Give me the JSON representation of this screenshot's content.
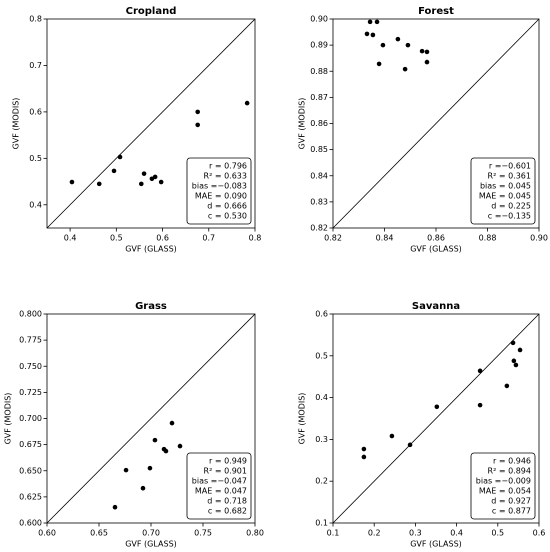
{
  "chart_data": [
    {
      "type": "scatter",
      "title": "Cropland",
      "xlabel": "GVF (GLASS)",
      "ylabel": "GVF (MODIS)",
      "color": "#000000",
      "x": [
        0.404,
        0.463,
        0.495,
        0.508,
        0.554,
        0.56,
        0.577,
        0.584,
        0.597,
        0.676,
        0.676,
        0.783
      ],
      "values": [
        0.449,
        0.445,
        0.473,
        0.503,
        0.445,
        0.467,
        0.456,
        0.46,
        0.449,
        0.6,
        0.572,
        0.619
      ],
      "xlim": [
        0.35,
        0.8
      ],
      "ylim": [
        0.35,
        0.8
      ],
      "xticks": [
        0.4,
        0.5,
        0.6,
        0.7,
        0.8
      ],
      "yticks": [
        0.4,
        0.5,
        0.6,
        0.7,
        0.8
      ],
      "stats": [
        "r = 0.796",
        "R² = 0.633",
        "bias =−0.083",
        "MAE = 0.090",
        "d = 0.666",
        "c = 0.530"
      ]
    },
    {
      "type": "scatter",
      "title": "Forest",
      "xlabel": "GVF (GLASS)",
      "ylabel": "GVF (MODIS)",
      "color": "#000000",
      "x": [
        0.8332,
        0.8355,
        0.8344,
        0.8371,
        0.8394,
        0.8379,
        0.8452,
        0.848,
        0.8491,
        0.8546,
        0.8565,
        0.8565
      ],
      "values": [
        0.8943,
        0.8939,
        0.8989,
        0.8989,
        0.89,
        0.8828,
        0.8923,
        0.8808,
        0.89,
        0.8877,
        0.8874,
        0.8835
      ],
      "xlim": [
        0.82,
        0.9
      ],
      "ylim": [
        0.82,
        0.9
      ],
      "xticks": [
        0.82,
        0.84,
        0.86,
        0.88,
        {
          "value": 0.9,
          "label": "0.90"
        }
      ],
      "yticks": [
        0.82,
        0.83,
        0.84,
        0.85,
        0.86,
        0.87,
        0.88,
        0.89,
        {
          "value": 0.9,
          "label": "0.90"
        }
      ],
      "stats": [
        "r =−0.601",
        "R² = 0.361",
        "bias = 0.045",
        "MAE = 0.045",
        "d = 0.225",
        "c =−0.135"
      ]
    },
    {
      "type": "scatter",
      "title": "Grass",
      "xlabel": "GVF (GLASS)",
      "ylabel": "GVF (MODIS)",
      "color": "#000000",
      "x": [
        0.6654,
        0.676,
        0.6923,
        0.699,
        0.7038,
        0.7125,
        0.7144,
        0.7202,
        0.7279
      ],
      "values": [
        0.6151,
        0.6506,
        0.6333,
        0.6525,
        0.6793,
        0.6707,
        0.6688,
        0.6956,
        0.6736
      ],
      "xlim": [
        0.6,
        0.8
      ],
      "ylim": [
        0.6,
        0.8
      ],
      "xticks": [
        {
          "value": 0.6,
          "label": "0.60"
        },
        0.65,
        {
          "value": 0.7,
          "label": "0.70"
        },
        0.75,
        {
          "value": 0.8,
          "label": "0.80"
        }
      ],
      "yticks": [
        {
          "value": 0.6,
          "label": "0.600"
        },
        0.625,
        {
          "value": 0.65,
          "label": "0.650"
        },
        0.675,
        {
          "value": 0.7,
          "label": "0.700"
        },
        0.725,
        {
          "value": 0.75,
          "label": "0.750"
        },
        0.775,
        {
          "value": 0.8,
          "label": "0.800"
        }
      ],
      "stats": [
        "r = 0.949",
        "R² = 0.901",
        "bias =−0.047",
        "MAE = 0.047",
        "d = 0.718",
        "c = 0.682"
      ]
    },
    {
      "type": "scatter",
      "title": "Savanna",
      "xlabel": "GVF (GLASS)",
      "ylabel": "GVF (MODIS)",
      "color": "#000000",
      "x": [
        0.175,
        0.175,
        0.243,
        0.287,
        0.352,
        0.457,
        0.457,
        0.522,
        0.537,
        0.539,
        0.544,
        0.554
      ],
      "values": [
        0.258,
        0.277,
        0.308,
        0.287,
        0.378,
        0.464,
        0.382,
        0.428,
        0.531,
        0.488,
        0.478,
        0.514
      ],
      "xlim": [
        0.1,
        0.6
      ],
      "ylim": [
        0.1,
        0.6
      ],
      "xticks": [
        0.1,
        0.2,
        0.3,
        0.4,
        0.5,
        0.6
      ],
      "yticks": [
        0.1,
        0.2,
        0.3,
        0.4,
        0.5,
        0.6
      ],
      "stats": [
        "r = 0.946",
        "R² = 0.894",
        "bias =−0.009",
        "MAE = 0.054",
        "d = 0.927",
        "c = 0.877"
      ]
    }
  ]
}
